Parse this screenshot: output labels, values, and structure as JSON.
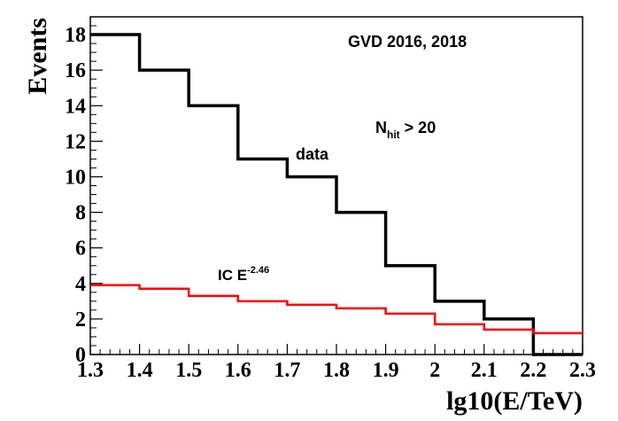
{
  "chart_data": {
    "type": "histogram-step",
    "title": "",
    "xlabel": "lg10(E/TeV)",
    "ylabel": "Events",
    "xlim": [
      1.3,
      2.3
    ],
    "ylim": [
      0,
      19
    ],
    "xticks": [
      "1.3",
      "1.4",
      "1.5",
      "1.6",
      "1.7",
      "1.8",
      "1.9",
      "2",
      "2.1",
      "2.2",
      "2.3"
    ],
    "yticks": [
      "0",
      "2",
      "4",
      "6",
      "8",
      "10",
      "12",
      "14",
      "16",
      "18"
    ],
    "bin_edges": [
      1.3,
      1.4,
      1.5,
      1.6,
      1.7,
      1.8,
      1.9,
      2.0,
      2.1,
      2.2,
      2.3
    ],
    "series": [
      {
        "name": "data",
        "color": "#000000",
        "values": [
          18,
          16,
          14,
          11,
          10,
          8,
          5,
          3,
          2,
          0
        ]
      },
      {
        "name": "IC E^-2.46",
        "color": "#ff0000",
        "values": [
          3.9,
          3.7,
          3.3,
          3.0,
          2.8,
          2.6,
          2.3,
          1.7,
          1.4,
          1.2
        ]
      }
    ],
    "annotations": {
      "header": "GVD 2016, 2018",
      "nhit_base": "N",
      "nhit_sub": "hit",
      "nhit_rest": " > 20",
      "data_label": "data",
      "ic_base": "IC E",
      "ic_sup": "-2.46"
    }
  }
}
